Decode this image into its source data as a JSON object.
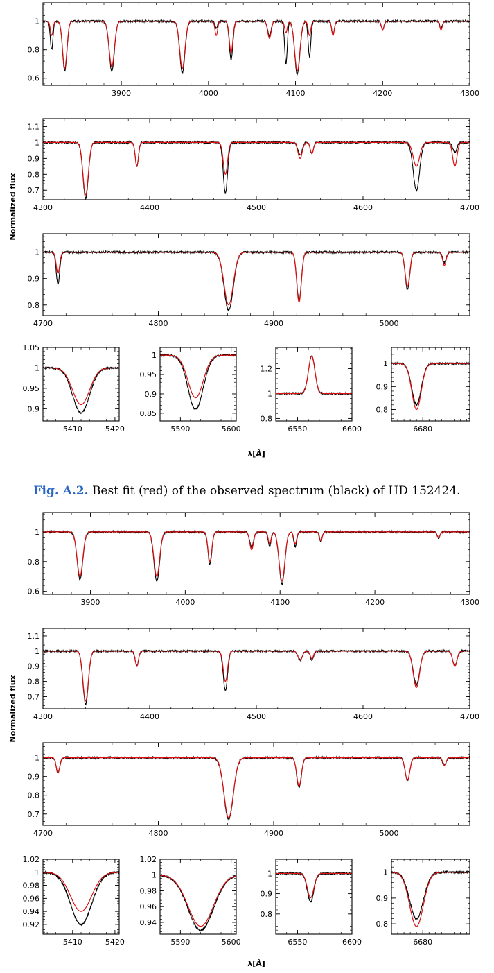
{
  "caption": {
    "label": "Fig. A.2.",
    "text": "Best fit (red) of the observed spectrum (black) of HD 152424."
  },
  "colors": {
    "observed": "#000000",
    "model": "#dd1010"
  },
  "chart_data": [
    {
      "id": "s1-p1",
      "type": "line",
      "x_range": [
        3810,
        4300
      ],
      "ylim": [
        0.55,
        1.13
      ],
      "x_ticks": [
        3900,
        4000,
        4100,
        4200,
        4300
      ],
      "y_ticks": [
        0.6,
        0.8,
        1
      ],
      "lines": [
        {
          "center": 3835,
          "width": 2.5,
          "depth": 0.35,
          "depth_model": 0.33
        },
        {
          "center": 3820,
          "width": 1.5,
          "depth": 0.2,
          "depth_model": 0.1
        },
        {
          "center": 3889,
          "width": 3,
          "depth": 0.35,
          "depth_model": 0.32
        },
        {
          "center": 3970,
          "width": 3,
          "depth": 0.36,
          "depth_model": 0.33
        },
        {
          "center": 4026,
          "width": 2,
          "depth": 0.27,
          "depth_model": 0.22
        },
        {
          "center": 4009,
          "width": 1.5,
          "depth": 0.05,
          "depth_model": 0.1
        },
        {
          "center": 4070,
          "width": 2,
          "depth": 0.1,
          "depth_model": 0.12
        },
        {
          "center": 4089,
          "width": 1.5,
          "depth": 0.3,
          "depth_model": 0.08
        },
        {
          "center": 4102,
          "width": 3,
          "depth": 0.37,
          "depth_model": 0.35
        },
        {
          "center": 4116,
          "width": 1.5,
          "depth": 0.25,
          "depth_model": 0.1
        },
        {
          "center": 4143,
          "width": 1.5,
          "depth": 0.1,
          "depth_model": 0.1
        },
        {
          "center": 4200,
          "width": 1.5,
          "depth": 0.06,
          "depth_model": 0.06
        },
        {
          "center": 4267,
          "width": 1.5,
          "depth": 0.05,
          "depth_model": 0.06
        }
      ]
    },
    {
      "id": "s1-p2",
      "type": "line",
      "x_range": [
        4300,
        4700
      ],
      "ylim": [
        0.64,
        1.15
      ],
      "x_ticks": [
        4300,
        4400,
        4500,
        4600,
        4700
      ],
      "y_ticks": [
        0.7,
        0.8,
        0.9,
        1,
        1.1
      ],
      "lines": [
        {
          "center": 4340,
          "width": 2.5,
          "depth": 0.35,
          "depth_model": 0.33
        },
        {
          "center": 4388,
          "width": 1.5,
          "depth": 0.15,
          "depth_model": 0.15
        },
        {
          "center": 4471,
          "width": 2,
          "depth": 0.32,
          "depth_model": 0.2
        },
        {
          "center": 4541,
          "width": 2,
          "depth": 0.08,
          "depth_model": 0.1
        },
        {
          "center": 4552,
          "width": 1.5,
          "depth": 0.07,
          "depth_model": 0.07
        },
        {
          "center": 4650,
          "width": 3,
          "depth": 0.3,
          "depth_model": 0.15
        },
        {
          "center": 4686,
          "width": 2,
          "depth": 0.06,
          "depth_model": 0.15
        }
      ]
    },
    {
      "id": "s1-p3",
      "type": "line",
      "x_range": [
        4700,
        5070
      ],
      "ylim": [
        0.76,
        1.07
      ],
      "x_ticks": [
        4700,
        4800,
        4900,
        5000
      ],
      "y_ticks": [
        0.8,
        0.9,
        1
      ],
      "lines": [
        {
          "center": 4713,
          "width": 1.5,
          "depth": 0.12,
          "depth_model": 0.08
        },
        {
          "center": 4861,
          "width": 4,
          "depth": 0.22,
          "depth_model": 0.2
        },
        {
          "center": 4922,
          "width": 2,
          "depth": 0.18,
          "depth_model": 0.19
        },
        {
          "center": 5016,
          "width": 2,
          "depth": 0.14,
          "depth_model": 0.13
        },
        {
          "center": 5048,
          "width": 1.5,
          "depth": 0.04,
          "depth_model": 0.05
        }
      ]
    },
    {
      "id": "s1-p4a",
      "type": "line",
      "x_range": [
        5403,
        5421
      ],
      "ylim": [
        0.87,
        1.05
      ],
      "x_ticks": [
        5410,
        5420
      ],
      "y_ticks": [
        0.9,
        0.95,
        1,
        1.05
      ],
      "lines": [
        {
          "center": 5412,
          "width": 2,
          "depth": 0.11,
          "depth_model": 0.09
        }
      ]
    },
    {
      "id": "s1-p4b",
      "type": "line",
      "x_range": [
        5586,
        5601
      ],
      "ylim": [
        0.83,
        1.02
      ],
      "x_ticks": [
        5590,
        5600
      ],
      "y_ticks": [
        0.85,
        0.9,
        0.95,
        1
      ],
      "lines": [
        {
          "center": 5593,
          "width": 1.5,
          "depth": 0.14,
          "depth_model": 0.11
        }
      ]
    },
    {
      "id": "s1-p4c",
      "type": "line",
      "x_range": [
        6530,
        6600
      ],
      "ylim": [
        0.78,
        1.37
      ],
      "x_ticks": [
        6550,
        6600
      ],
      "y_ticks": [
        0.8,
        1,
        1.2
      ],
      "lines": [
        {
          "center": 6563,
          "width": 3,
          "depth": -0.3,
          "depth_model": -0.3
        }
      ]
    },
    {
      "id": "s1-p4d",
      "type": "line",
      "x_range": [
        6670,
        6695
      ],
      "ylim": [
        0.75,
        1.07
      ],
      "x_ticks": [
        6680
      ],
      "y_ticks": [
        0.8,
        0.9,
        1
      ],
      "lines": [
        {
          "center": 6678,
          "width": 1.5,
          "depth": 0.18,
          "depth_model": 0.2
        }
      ]
    },
    {
      "id": "s2-p1",
      "type": "line",
      "x_range": [
        3850,
        4300
      ],
      "ylim": [
        0.58,
        1.13
      ],
      "x_ticks": [
        3900,
        4000,
        4100,
        4200,
        4300
      ],
      "y_ticks": [
        0.6,
        0.8,
        1
      ],
      "lines": [
        {
          "center": 3889,
          "width": 3,
          "depth": 0.32,
          "depth_model": 0.3
        },
        {
          "center": 3970,
          "width": 3,
          "depth": 0.33,
          "depth_model": 0.3
        },
        {
          "center": 4026,
          "width": 2,
          "depth": 0.22,
          "depth_model": 0.2
        },
        {
          "center": 4070,
          "width": 2,
          "depth": 0.1,
          "depth_model": 0.12
        },
        {
          "center": 4089,
          "width": 1.5,
          "depth": 0.1,
          "depth_model": 0.08
        },
        {
          "center": 4102,
          "width": 3,
          "depth": 0.35,
          "depth_model": 0.33
        },
        {
          "center": 4116,
          "width": 1.5,
          "depth": 0.1,
          "depth_model": 0.08
        },
        {
          "center": 4143,
          "width": 1.5,
          "depth": 0.06,
          "depth_model": 0.06
        },
        {
          "center": 4267,
          "width": 1.5,
          "depth": 0.04,
          "depth_model": 0.04
        }
      ]
    },
    {
      "id": "s2-p2",
      "type": "line",
      "x_range": [
        4300,
        4700
      ],
      "ylim": [
        0.62,
        1.15
      ],
      "x_ticks": [
        4300,
        4400,
        4500,
        4600,
        4700
      ],
      "y_ticks": [
        0.7,
        0.8,
        0.9,
        1,
        1.1
      ],
      "lines": [
        {
          "center": 4340,
          "width": 2.5,
          "depth": 0.35,
          "depth_model": 0.33
        },
        {
          "center": 4388,
          "width": 1.5,
          "depth": 0.1,
          "depth_model": 0.1
        },
        {
          "center": 4471,
          "width": 2,
          "depth": 0.26,
          "depth_model": 0.2
        },
        {
          "center": 4541,
          "width": 2,
          "depth": 0.06,
          "depth_model": 0.06
        },
        {
          "center": 4552,
          "width": 1.5,
          "depth": 0.06,
          "depth_model": 0.05
        },
        {
          "center": 4650,
          "width": 3,
          "depth": 0.22,
          "depth_model": 0.24
        },
        {
          "center": 4686,
          "width": 2,
          "depth": 0.1,
          "depth_model": 0.1
        }
      ]
    },
    {
      "id": "s2-p3",
      "type": "line",
      "x_range": [
        4700,
        5070
      ],
      "ylim": [
        0.64,
        1.08
      ],
      "x_ticks": [
        4700,
        4800,
        4900,
        5000
      ],
      "y_ticks": [
        0.7,
        0.8,
        0.9,
        1
      ],
      "lines": [
        {
          "center": 4713,
          "width": 1.5,
          "depth": 0.08,
          "depth_model": 0.08
        },
        {
          "center": 4861,
          "width": 4,
          "depth": 0.33,
          "depth_model": 0.32
        },
        {
          "center": 4922,
          "width": 2,
          "depth": 0.16,
          "depth_model": 0.15
        },
        {
          "center": 5016,
          "width": 2,
          "depth": 0.12,
          "depth_model": 0.12
        },
        {
          "center": 5048,
          "width": 1.5,
          "depth": 0.04,
          "depth_model": 0.04
        }
      ]
    },
    {
      "id": "s2-p4a",
      "type": "line",
      "x_range": [
        5403,
        5421
      ],
      "ylim": [
        0.905,
        1.02
      ],
      "x_ticks": [
        5410,
        5420
      ],
      "y_ticks": [
        0.92,
        0.94,
        0.96,
        0.98,
        1,
        1.02
      ],
      "lines": [
        {
          "center": 5412,
          "width": 2.5,
          "depth": 0.08,
          "depth_model": 0.06
        }
      ]
    },
    {
      "id": "s2-p4b",
      "type": "line",
      "x_range": [
        5586,
        5601
      ],
      "ylim": [
        0.925,
        1.02
      ],
      "x_ticks": [
        5590,
        5600
      ],
      "y_ticks": [
        0.94,
        0.96,
        0.98,
        1,
        1.02
      ],
      "lines": [
        {
          "center": 5594,
          "width": 2.5,
          "depth": 0.07,
          "depth_model": 0.065
        }
      ]
    },
    {
      "id": "s2-p4c",
      "type": "line",
      "x_range": [
        6530,
        6600
      ],
      "ylim": [
        0.7,
        1.07
      ],
      "x_ticks": [
        6550,
        6600
      ],
      "y_ticks": [
        0.8,
        0.9,
        1
      ],
      "lines": [
        {
          "center": 6562,
          "width": 3,
          "depth": 0.14,
          "depth_model": 0.12
        }
      ]
    },
    {
      "id": "s2-p4d",
      "type": "line",
      "x_range": [
        6670,
        6695
      ],
      "ylim": [
        0.76,
        1.05
      ],
      "x_ticks": [
        6680
      ],
      "y_ticks": [
        0.8,
        0.9,
        1
      ],
      "lines": [
        {
          "center": 6678,
          "width": 2.2,
          "depth": 0.18,
          "depth_model": 0.21
        }
      ]
    }
  ],
  "labels": {
    "ylabel": "Normalized flux",
    "xlabel": "λ[Å]"
  }
}
